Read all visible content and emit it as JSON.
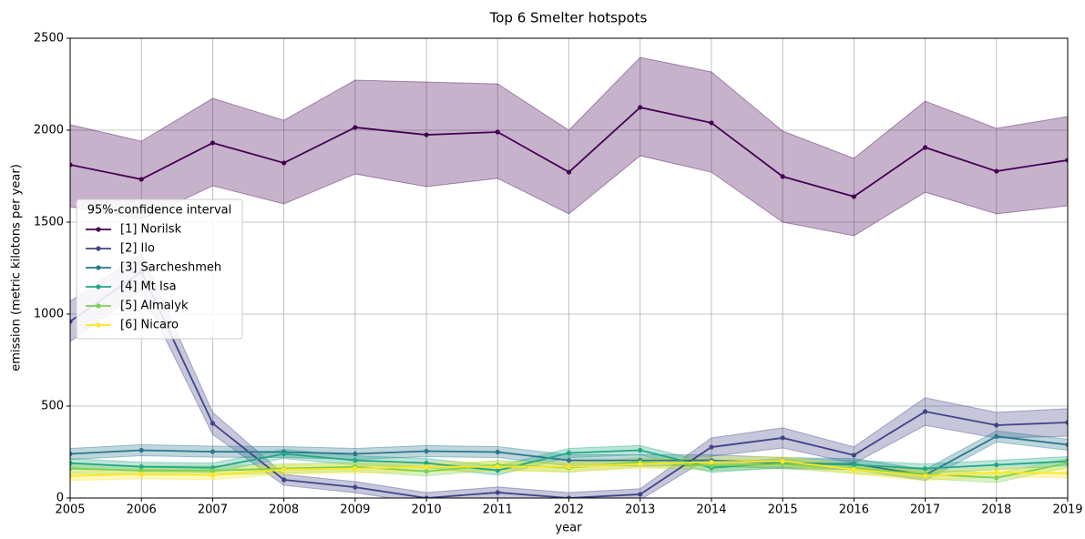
{
  "chart_data": {
    "type": "line",
    "title": "Top 6 Smelter hotspots",
    "x_label": "year",
    "y_label": "emission (metric kilotons per year)",
    "x": [
      2005,
      2006,
      2007,
      2008,
      2009,
      2010,
      2011,
      2012,
      2013,
      2014,
      2015,
      2016,
      2017,
      2018,
      2019
    ],
    "xlim": [
      2005,
      2019
    ],
    "xticks": [
      2005,
      2006,
      2007,
      2008,
      2009,
      2010,
      2011,
      2012,
      2013,
      2014,
      2015,
      2016,
      2017,
      2018,
      2019
    ],
    "ylim": [
      0,
      2500
    ],
    "yticks": [
      0,
      500,
      1000,
      1500,
      2000,
      2500
    ],
    "grid": true,
    "legend_title": "95%-confidence interval",
    "legend_position": "center left",
    "series": [
      {
        "name": "[1] Norilsk",
        "color": "#440154",
        "values": [
          1812,
          1733,
          1931,
          1822,
          2015,
          1975,
          1990,
          1772,
          2124,
          2040,
          1748,
          1639,
          1906,
          1777,
          1837
        ],
        "ci_low": [
          1584,
          1515,
          1698,
          1599,
          1762,
          1693,
          1738,
          1545,
          1861,
          1772,
          1500,
          1426,
          1663,
          1545,
          1589
        ],
        "ci_high": [
          2030,
          1940,
          2173,
          2054,
          2272,
          2262,
          2252,
          2000,
          2396,
          2317,
          1995,
          1847,
          2158,
          2010,
          2074
        ]
      },
      {
        "name": "[2] Ilo",
        "color": "#414487",
        "values": [
          960,
          1230,
          406,
          99,
          59,
          0,
          30,
          0,
          20,
          277,
          327,
          233,
          470,
          396,
          411
        ],
        "ci_low": [
          850,
          1130,
          346,
          69,
          29,
          -30,
          0,
          -30,
          -10,
          227,
          272,
          188,
          395,
          326,
          336
        ],
        "ci_high": [
          1070,
          1330,
          466,
          129,
          89,
          30,
          60,
          30,
          50,
          327,
          382,
          278,
          545,
          466,
          486
        ]
      },
      {
        "name": "[3] Sarcheshmeh",
        "color": "#2a788e",
        "values": [
          240,
          260,
          252,
          250,
          240,
          255,
          250,
          205,
          205,
          205,
          190,
          185,
          125,
          335,
          290
        ],
        "ci_low": [
          210,
          230,
          222,
          220,
          210,
          225,
          220,
          175,
          175,
          175,
          160,
          155,
          95,
          305,
          260
        ],
        "ci_high": [
          270,
          290,
          282,
          280,
          270,
          285,
          280,
          235,
          235,
          235,
          220,
          215,
          155,
          365,
          320
        ]
      },
      {
        "name": "[4] Mt Isa",
        "color": "#22a884",
        "values": [
          190,
          170,
          165,
          240,
          205,
          190,
          150,
          245,
          260,
          165,
          190,
          180,
          160,
          180,
          200
        ],
        "ci_low": [
          165,
          145,
          140,
          215,
          180,
          165,
          125,
          220,
          235,
          140,
          165,
          155,
          135,
          155,
          175
        ],
        "ci_high": [
          215,
          195,
          190,
          265,
          230,
          215,
          175,
          270,
          285,
          190,
          215,
          205,
          185,
          205,
          225
        ]
      },
      {
        "name": "[5] Almalyk",
        "color": "#7ad151",
        "values": [
          160,
          150,
          150,
          160,
          170,
          145,
          180,
          165,
          195,
          175,
          185,
          160,
          130,
          110,
          190
        ],
        "ci_low": [
          135,
          125,
          125,
          135,
          145,
          120,
          155,
          140,
          170,
          150,
          160,
          135,
          105,
          85,
          165
        ],
        "ci_high": [
          185,
          175,
          175,
          185,
          195,
          170,
          205,
          190,
          220,
          200,
          210,
          185,
          155,
          135,
          215
        ]
      },
      {
        "name": "[6] Nicaro",
        "color": "#fde725",
        "values": [
          120,
          130,
          125,
          155,
          160,
          170,
          170,
          170,
          185,
          195,
          200,
          155,
          120,
          140,
          135
        ],
        "ci_low": [
          95,
          105,
          100,
          130,
          135,
          145,
          145,
          145,
          160,
          170,
          175,
          130,
          95,
          115,
          110
        ],
        "ci_high": [
          145,
          155,
          150,
          180,
          185,
          195,
          195,
          195,
          210,
          220,
          225,
          180,
          145,
          165,
          160
        ]
      }
    ]
  }
}
